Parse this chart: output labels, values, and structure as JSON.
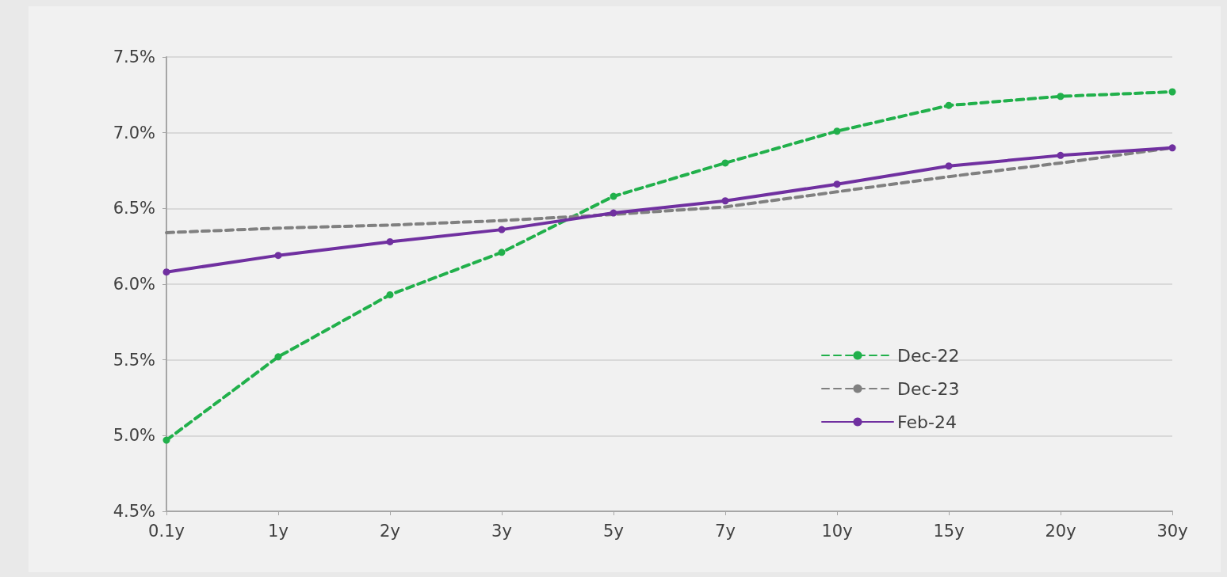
{
  "chart_data": {
    "type": "line",
    "categories": [
      "0.1y",
      "1y",
      "2y",
      "3y",
      "5y",
      "7y",
      "10y",
      "15y",
      "20y",
      "30y"
    ],
    "series": [
      {
        "name": "Dec-22",
        "color": "#21b04b",
        "marker": "circle",
        "line_style": "dashed",
        "values": [
          4.97,
          5.52,
          5.93,
          6.21,
          6.58,
          6.8,
          7.01,
          7.18,
          7.24,
          7.27
        ]
      },
      {
        "name": "Dec-23",
        "color": "#808080",
        "marker": "none",
        "line_style": "dashed",
        "values": [
          6.34,
          6.37,
          6.39,
          6.42,
          6.46,
          6.51,
          6.61,
          6.71,
          6.8,
          6.9
        ]
      },
      {
        "name": "Feb-24",
        "color": "#7030a0",
        "marker": "circle",
        "line_style": "solid",
        "values": [
          6.08,
          6.19,
          6.28,
          6.36,
          6.47,
          6.55,
          6.66,
          6.78,
          6.85,
          6.9
        ]
      }
    ],
    "ylim": [
      4.5,
      7.5
    ],
    "yticks": [
      {
        "value": 4.5,
        "label": "4.5%"
      },
      {
        "value": 5.0,
        "label": "5.0%"
      },
      {
        "value": 5.5,
        "label": "5.5%"
      },
      {
        "value": 6.0,
        "label": "6.0%"
      },
      {
        "value": 6.5,
        "label": "6.5%"
      },
      {
        "value": 7.0,
        "label": "7.0%"
      },
      {
        "value": 7.5,
        "label": "7.5%"
      }
    ],
    "grid": "y",
    "legend": "right"
  }
}
